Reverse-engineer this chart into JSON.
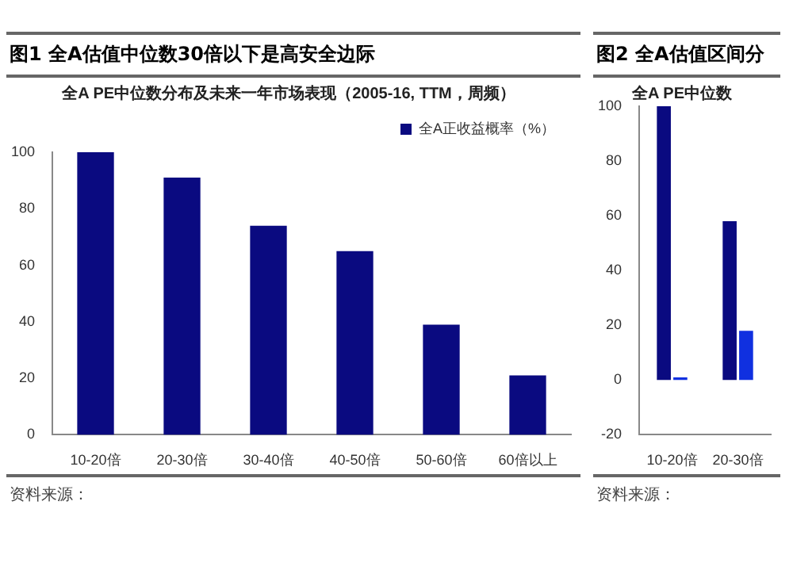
{
  "chart_data": [
    {
      "type": "bar",
      "title": "图1 全A估值中位数30倍以下是高安全边际",
      "subtitle": "全A PE中位数分布及未来一年市场表现（2005-16, TTM，周频）",
      "categories": [
        "10-20倍",
        "20-30倍",
        "30-40倍",
        "40-50倍",
        "50-60倍",
        "60倍以上"
      ],
      "series": [
        {
          "name": "全A正收益概率（%）",
          "color": "#0a0a80",
          "values": [
            100,
            91,
            74,
            65,
            39,
            21
          ]
        }
      ],
      "ylim": [
        0,
        100
      ],
      "yticks": [
        0,
        20,
        40,
        60,
        80,
        100
      ],
      "grid": false,
      "legend": "top right",
      "annotations": [
        "资料来源："
      ]
    },
    {
      "type": "bar",
      "title": "图2 全A估值区间分",
      "subtitle": "全A PE中位数",
      "categories": [
        "10-20倍",
        "20-30倍"
      ],
      "series": [
        {
          "color": "#0a0a80",
          "values": [
            100,
            58
          ]
        },
        {
          "color": "#1030e0",
          "values": [
            1,
            18
          ]
        }
      ],
      "ylim": [
        -20,
        100
      ],
      "yticks": [
        -20,
        0,
        20,
        40,
        60,
        80,
        100
      ],
      "grid": false,
      "annotations": [
        "资料来源："
      ]
    }
  ]
}
